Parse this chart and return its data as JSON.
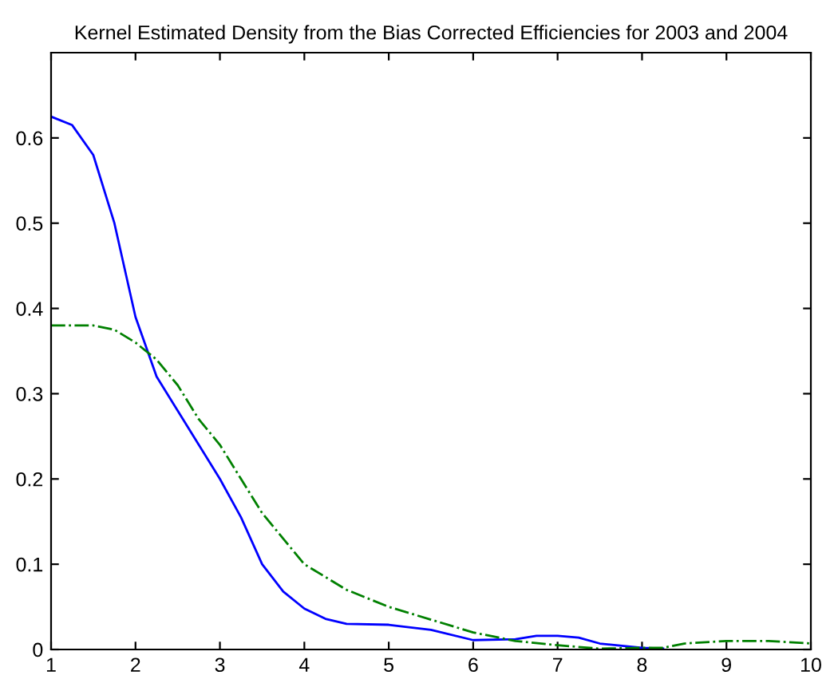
{
  "chart_data": {
    "type": "line",
    "title": "Kernel Estimated Density from the Bias Corrected Efficiencies for 2003 and 2004",
    "xlim": [
      1,
      10
    ],
    "xticks": [
      1,
      2,
      3,
      4,
      5,
      6,
      7,
      8,
      9,
      10
    ],
    "ylim": [
      0,
      0.7
    ],
    "yticks": [
      0,
      0.1,
      0.2,
      0.3,
      0.4,
      0.5,
      0.6
    ],
    "grid": false,
    "legend": false,
    "marker": "none",
    "series": [
      {
        "color": "#0000ff",
        "line_style": "solid",
        "x": [
          1,
          1.25,
          1.5,
          1.75,
          2,
          2.25,
          2.5,
          2.75,
          3,
          3.25,
          3.5,
          3.75,
          4,
          4.25,
          4.5,
          5,
          5.5,
          6,
          6.5,
          6.75,
          7,
          7.25,
          7.5,
          8,
          8.25
        ],
        "values": [
          0.625,
          0.615,
          0.58,
          0.5,
          0.39,
          0.32,
          0.28,
          0.24,
          0.2,
          0.155,
          0.1,
          0.068,
          0.048,
          0.036,
          0.03,
          0.029,
          0.023,
          0.011,
          0.012,
          0.016,
          0.016,
          0.014,
          0.007,
          0.002,
          0.001
        ]
      },
      {
        "color": "#008000",
        "line_style": "dashdot",
        "x": [
          1,
          1.5,
          1.75,
          2,
          2.25,
          2.5,
          2.75,
          3,
          3.25,
          3.5,
          3.75,
          4,
          4.5,
          5,
          5.5,
          6,
          6.5,
          7,
          7.5,
          8,
          8.25,
          8.5,
          9,
          9.5,
          10
        ],
        "values": [
          0.38,
          0.38,
          0.375,
          0.36,
          0.34,
          0.31,
          0.27,
          0.24,
          0.2,
          0.16,
          0.13,
          0.1,
          0.07,
          0.05,
          0.035,
          0.02,
          0.01,
          0.005,
          0.001,
          0.002,
          0.002,
          0.007,
          0.01,
          0.01,
          0.007
        ]
      }
    ]
  }
}
